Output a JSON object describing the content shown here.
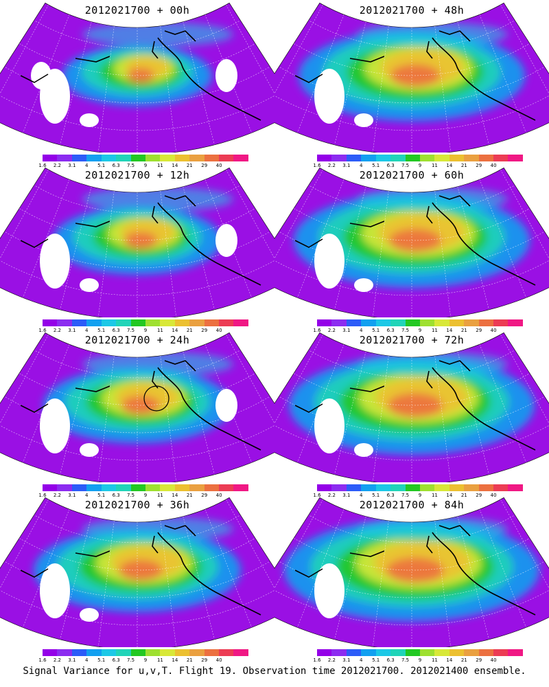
{
  "panels": [
    {
      "title": "2012021700 + 00h",
      "intensity": 0.35,
      "has_circle": false,
      "hole_level": 3
    },
    {
      "title": "2012021700 + 12h",
      "intensity": 0.45,
      "has_circle": false,
      "hole_level": 2
    },
    {
      "title": "2012021700 + 24h",
      "intensity": 0.55,
      "has_circle": true,
      "hole_level": 2
    },
    {
      "title": "2012021700 + 36h",
      "intensity": 0.65,
      "has_circle": false,
      "hole_level": 1
    },
    {
      "title": "2012021700 + 48h",
      "intensity": 0.75,
      "has_circle": false,
      "hole_level": 1
    },
    {
      "title": "2012021700 + 60h",
      "intensity": 0.8,
      "has_circle": false,
      "hole_level": 1
    },
    {
      "title": "2012021700 + 72h",
      "intensity": 0.85,
      "has_circle": false,
      "hole_level": 1
    },
    {
      "title": "2012021700 + 84h",
      "intensity": 0.9,
      "has_circle": false,
      "hole_level": 0
    }
  ],
  "colorbar": {
    "colors": [
      "#9400e8",
      "#8c2cf0",
      "#2c5cf8",
      "#12a0f0",
      "#1cc8e6",
      "#20d4b8",
      "#22c822",
      "#9ee030",
      "#d8e838",
      "#ecc030",
      "#eaa040",
      "#ec7040",
      "#ec3c54",
      "#f01884"
    ],
    "labels": [
      "1.6",
      "2.2",
      "3.1",
      "4",
      "5.1",
      "6.3",
      "7.5",
      "9",
      "11",
      "14",
      "21",
      "29",
      "40"
    ]
  },
  "caption": "Signal Variance for u,v,T. Flight 19. Observation time 2012021700. 2012021400 ensemble."
}
